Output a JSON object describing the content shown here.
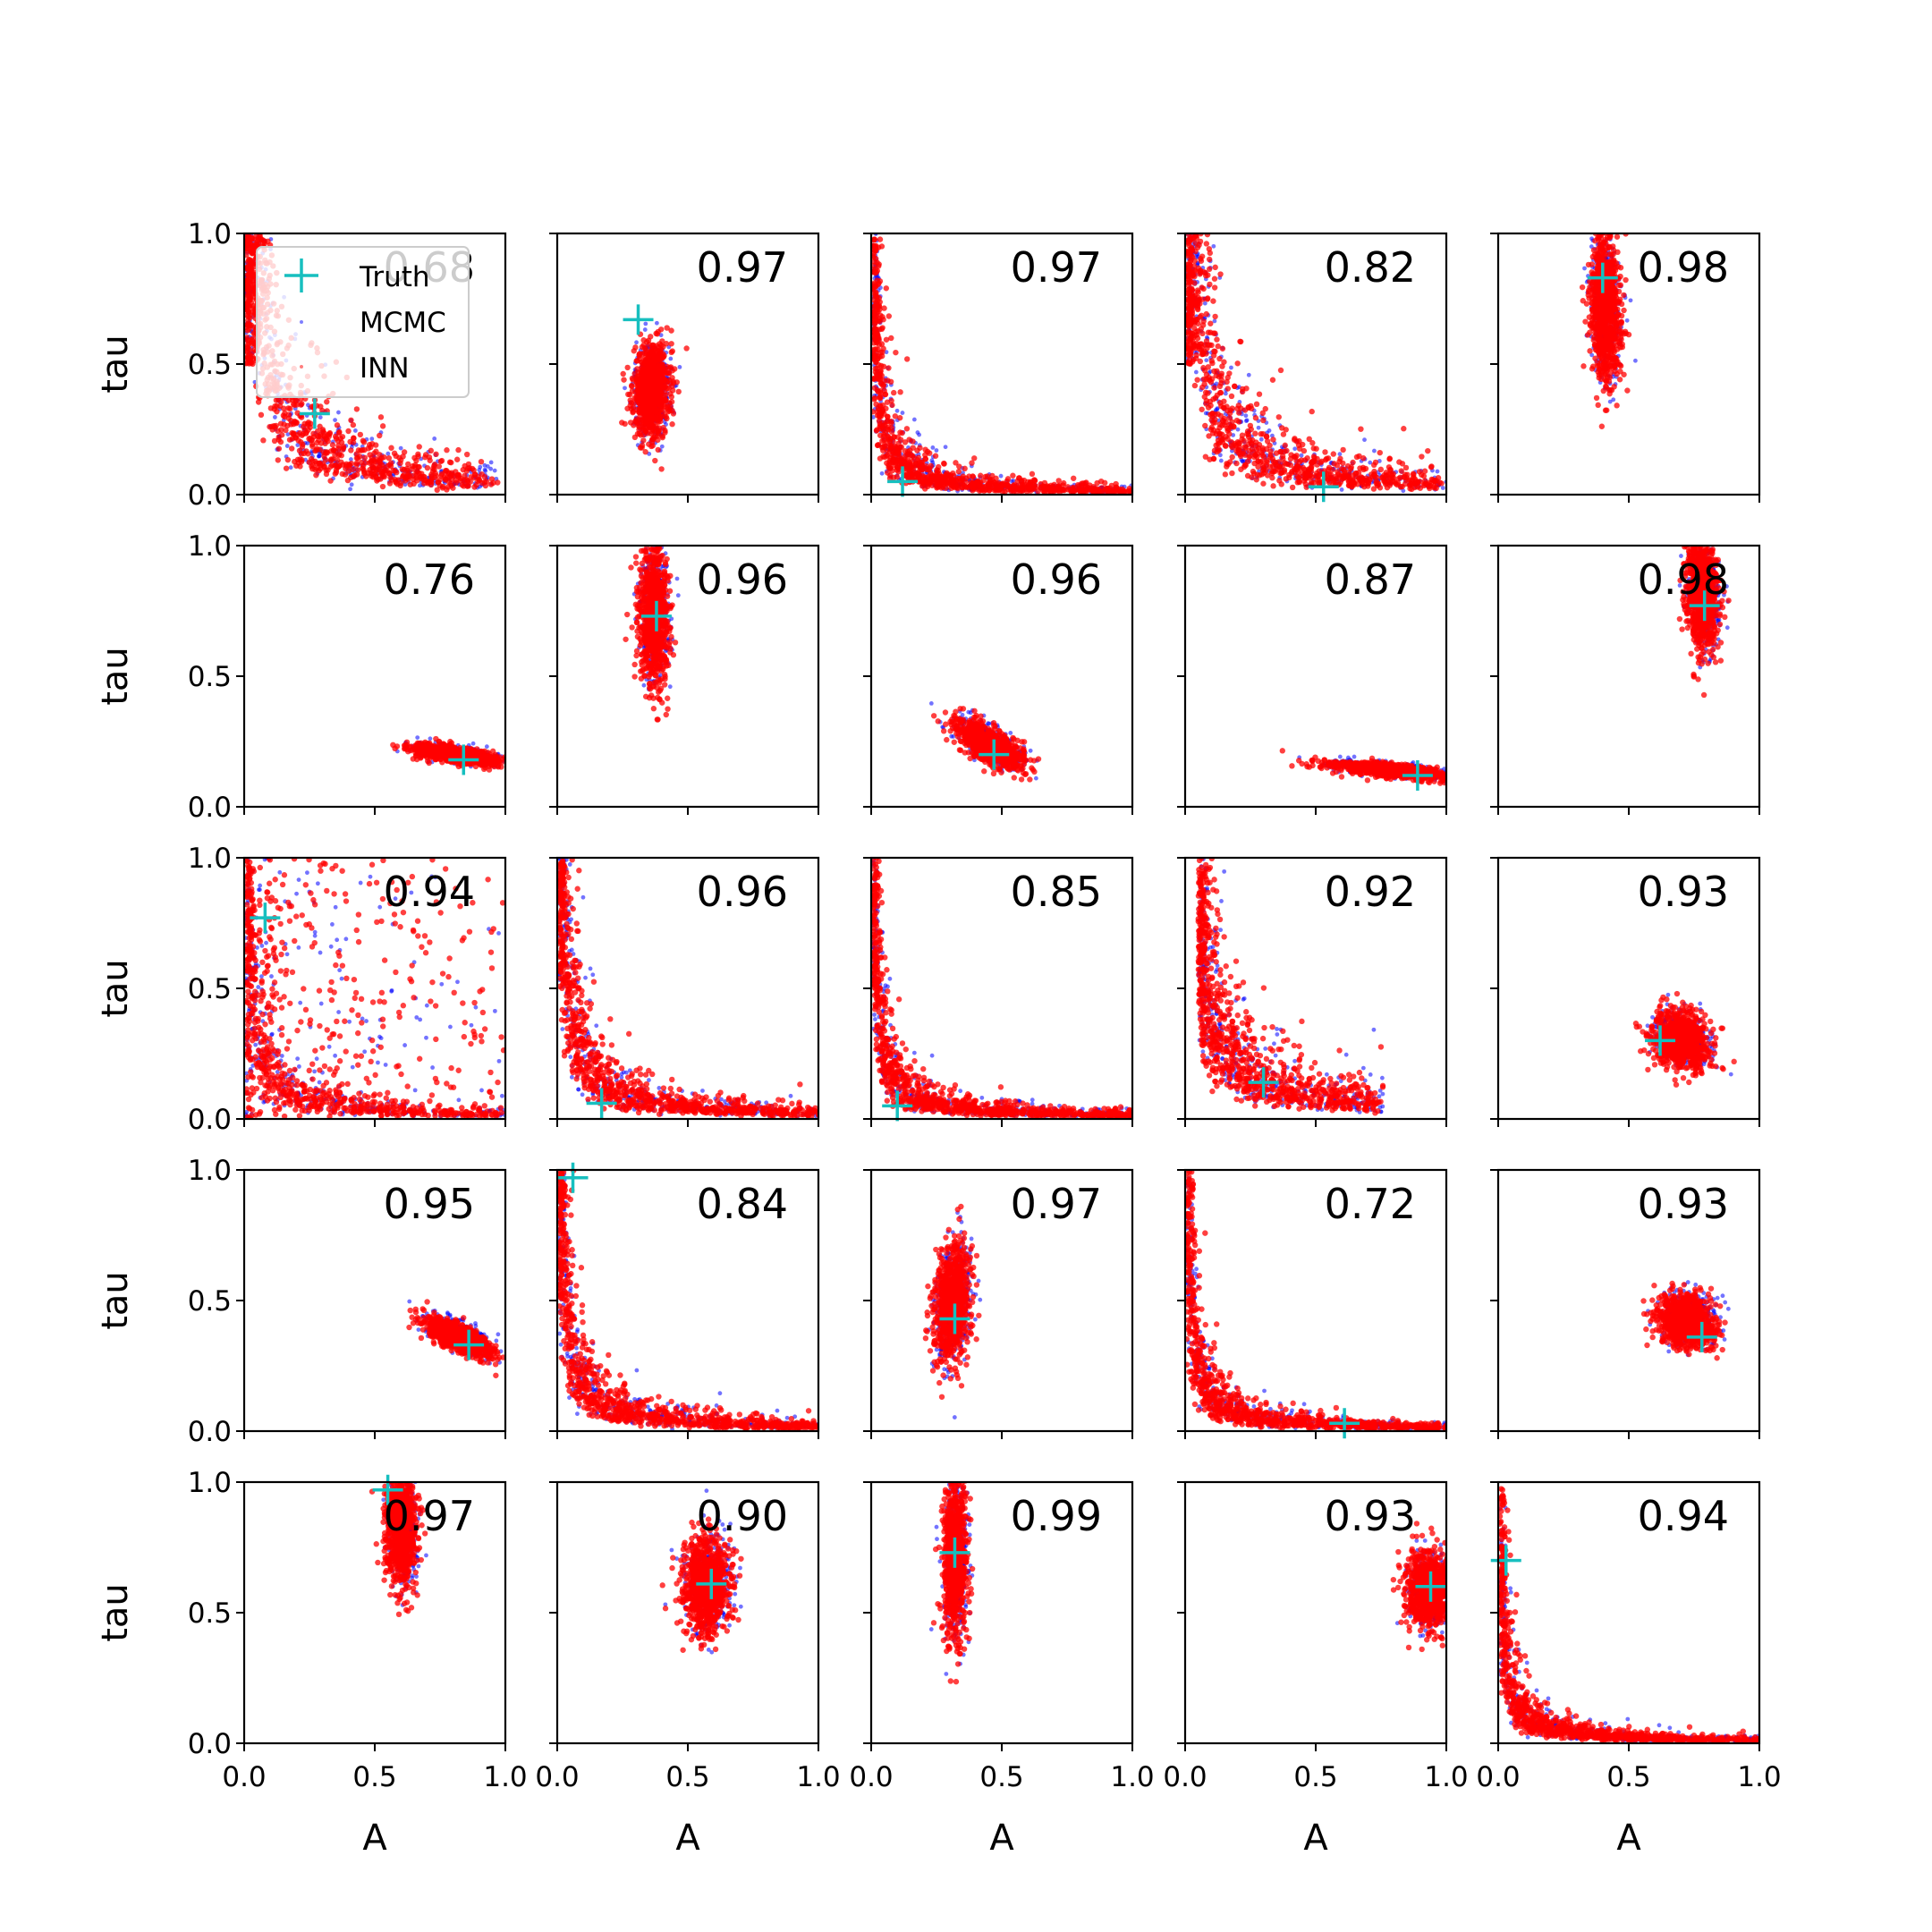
{
  "chart_data": {
    "type": "scatter",
    "layout": "5x5 grid of scatter subplots, shared axes",
    "xlabel": "A",
    "ylabel": "tau",
    "xlim": [
      0,
      1
    ],
    "ylim": [
      0,
      1
    ],
    "xticks": [
      "0.0",
      "0.5",
      "1.0"
    ],
    "yticks": [
      "0.0",
      "0.5",
      "1.0"
    ],
    "legend": {
      "location": "upper-left of first subplot",
      "entries": [
        "Truth",
        "MCMC",
        "INN"
      ]
    },
    "colors": {
      "truth": "#17bfbf",
      "mcmc": "#0000ff",
      "inn": "#ff0000"
    },
    "panels": [
      {
        "score": "0.68",
        "truth": [
          0.27,
          0.31
        ],
        "shape": "curve",
        "params": {
          "x0": 0.0,
          "k": 0.055,
          "xmax": 0.95,
          "ymax": 1.0
        }
      },
      {
        "score": "0.97",
        "truth": [
          0.31,
          0.67
        ],
        "shape": "ellipse",
        "params": {
          "cx": 0.36,
          "cy": 0.4,
          "rx": 0.07,
          "ry": 0.17,
          "tilt": -0.2
        }
      },
      {
        "score": "0.97",
        "truth": [
          0.12,
          0.05
        ],
        "shape": "curve",
        "params": {
          "x0": 0.0,
          "k": 0.015,
          "xmax": 1.0,
          "ymax": 1.0
        }
      },
      {
        "score": "0.82",
        "truth": [
          0.53,
          0.03
        ],
        "shape": "curve",
        "params": {
          "x0": 0.0,
          "k": 0.045,
          "xmax": 0.98,
          "ymax": 1.0
        }
      },
      {
        "score": "0.98",
        "truth": [
          0.4,
          0.83
        ],
        "shape": "ellipse",
        "params": {
          "cx": 0.41,
          "cy": 0.72,
          "rx": 0.055,
          "ry": 0.28,
          "tilt": 0.1
        }
      },
      {
        "score": "0.76",
        "truth": [
          0.84,
          0.18
        ],
        "shape": "ellipse",
        "params": {
          "cx": 0.81,
          "cy": 0.2,
          "rx": 0.16,
          "ry": 0.03,
          "tilt": -0.15
        }
      },
      {
        "score": "0.96",
        "truth": [
          0.38,
          0.73
        ],
        "shape": "ellipse",
        "params": {
          "cx": 0.37,
          "cy": 0.74,
          "rx": 0.055,
          "ry": 0.26,
          "tilt": 0.05
        }
      },
      {
        "score": "0.96",
        "truth": [
          0.47,
          0.2
        ],
        "shape": "ellipse",
        "params": {
          "cx": 0.45,
          "cy": 0.24,
          "rx": 0.14,
          "ry": 0.06,
          "tilt": -0.5
        }
      },
      {
        "score": "0.87",
        "truth": [
          0.89,
          0.12
        ],
        "shape": "ellipse",
        "params": {
          "cx": 0.78,
          "cy": 0.14,
          "rx": 0.24,
          "ry": 0.025,
          "tilt": -0.1
        }
      },
      {
        "score": "0.98",
        "truth": [
          0.79,
          0.77
        ],
        "shape": "ellipse",
        "params": {
          "cx": 0.78,
          "cy": 0.82,
          "rx": 0.06,
          "ry": 0.22,
          "tilt": 0.15
        }
      },
      {
        "score": "0.94",
        "truth": [
          0.08,
          0.77
        ],
        "shape": "curve",
        "params": {
          "x0": 0.0,
          "k": 0.02,
          "xmax": 1.0,
          "ymax": 1.0,
          "wide": 0.2
        }
      },
      {
        "score": "0.96",
        "truth": [
          0.17,
          0.06
        ],
        "shape": "curve",
        "params": {
          "x0": 0.0,
          "k": 0.025,
          "xmax": 1.0,
          "ymax": 1.0
        }
      },
      {
        "score": "0.85",
        "truth": [
          0.1,
          0.05
        ],
        "shape": "curve",
        "params": {
          "x0": 0.0,
          "k": 0.015,
          "xmax": 1.0,
          "ymax": 1.0
        }
      },
      {
        "score": "0.92",
        "truth": [
          0.3,
          0.14
        ],
        "shape": "curve",
        "params": {
          "x0": 0.0,
          "k": 0.045,
          "xmax": 0.75,
          "ymax": 1.0,
          "xmin": 0.05
        }
      },
      {
        "score": "0.93",
        "truth": [
          0.62,
          0.3
        ],
        "shape": "ellipse",
        "params": {
          "cx": 0.7,
          "cy": 0.3,
          "rx": 0.11,
          "ry": 0.1,
          "tilt": -0.3
        }
      },
      {
        "score": "0.95",
        "truth": [
          0.86,
          0.33
        ],
        "shape": "ellipse",
        "params": {
          "cx": 0.82,
          "cy": 0.36,
          "rx": 0.13,
          "ry": 0.05,
          "tilt": -0.4
        }
      },
      {
        "score": "0.84",
        "truth": [
          0.06,
          0.97
        ],
        "shape": "curve",
        "params": {
          "x0": 0.0,
          "k": 0.02,
          "xmax": 1.0,
          "ymax": 1.0
        }
      },
      {
        "score": "0.97",
        "truth": [
          0.32,
          0.43
        ],
        "shape": "ellipse",
        "params": {
          "cx": 0.31,
          "cy": 0.5,
          "rx": 0.07,
          "ry": 0.22,
          "tilt": -0.35
        }
      },
      {
        "score": "0.72",
        "truth": [
          0.61,
          0.03
        ],
        "shape": "curve",
        "params": {
          "x0": 0.0,
          "k": 0.015,
          "xmax": 1.0,
          "ymax": 1.0
        }
      },
      {
        "score": "0.93",
        "truth": [
          0.78,
          0.36
        ],
        "shape": "ellipse",
        "params": {
          "cx": 0.72,
          "cy": 0.42,
          "rx": 0.11,
          "ry": 0.1,
          "tilt": -0.2
        }
      },
      {
        "score": "0.97",
        "truth": [
          0.55,
          0.97
        ],
        "shape": "ellipse",
        "params": {
          "cx": 0.6,
          "cy": 0.82,
          "rx": 0.06,
          "ry": 0.22,
          "tilt": 0.05
        }
      },
      {
        "score": "0.90",
        "truth": [
          0.59,
          0.61
        ],
        "shape": "ellipse",
        "params": {
          "cx": 0.57,
          "cy": 0.6,
          "rx": 0.09,
          "ry": 0.19,
          "tilt": 0.0
        }
      },
      {
        "score": "0.99",
        "truth": [
          0.32,
          0.73
        ],
        "shape": "ellipse",
        "params": {
          "cx": 0.32,
          "cy": 0.7,
          "rx": 0.045,
          "ry": 0.3,
          "tilt": 0.0
        }
      },
      {
        "score": "0.93",
        "truth": [
          0.94,
          0.6
        ],
        "shape": "ellipse",
        "params": {
          "cx": 0.93,
          "cy": 0.58,
          "rx": 0.08,
          "ry": 0.14,
          "tilt": 0.0
        }
      },
      {
        "score": "0.94",
        "truth": [
          0.03,
          0.7
        ],
        "shape": "curve",
        "params": {
          "x0": 0.0,
          "k": 0.012,
          "xmax": 1.0,
          "ymax": 1.0
        }
      }
    ]
  }
}
